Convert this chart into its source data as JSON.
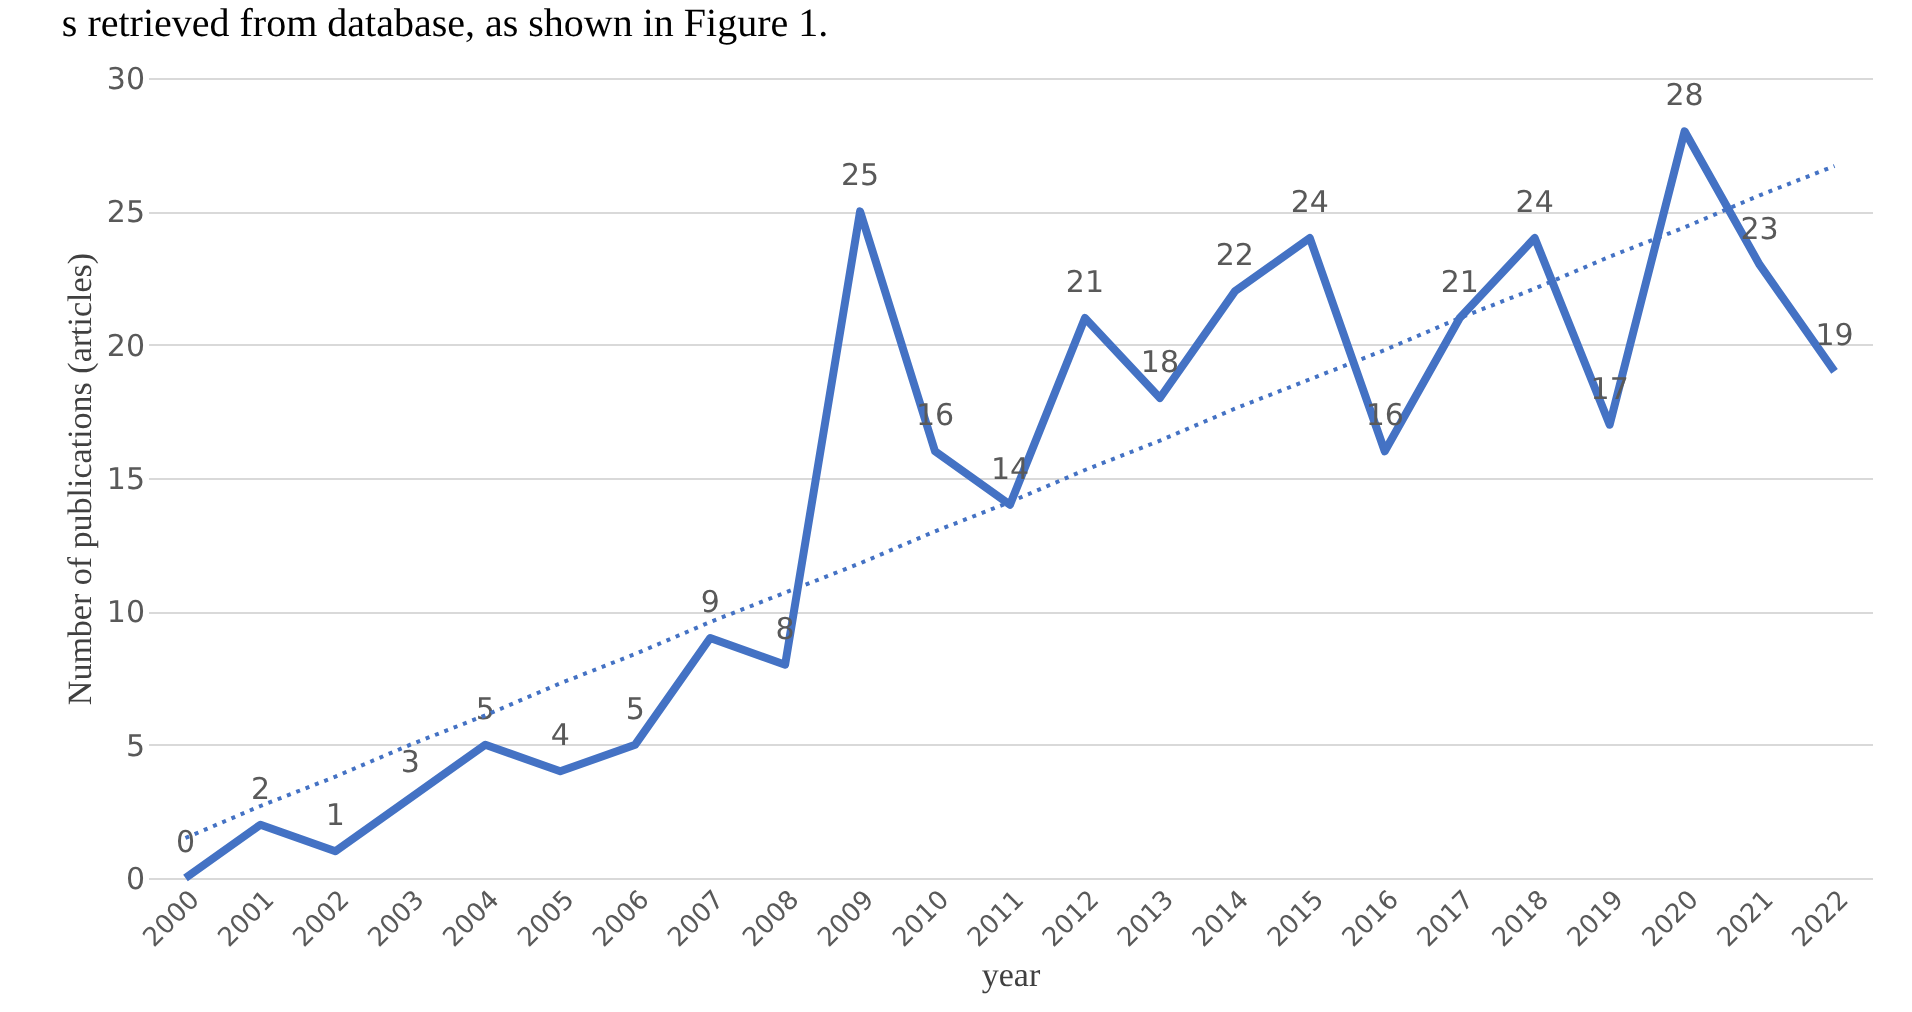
{
  "chart_data": {
    "type": "line",
    "xlabel": "year",
    "ylabel": "Number of publications (articles)",
    "annotations": [
      "s retrieved from database, as shown in Figure 1."
    ],
    "categories": [
      "2000",
      "2001",
      "2002",
      "2003",
      "2004",
      "2005",
      "2006",
      "2007",
      "2008",
      "2009",
      "2010",
      "2011",
      "2012",
      "2013",
      "2014",
      "2015",
      "2016",
      "2017",
      "2018",
      "2019",
      "2020",
      "2021",
      "2022"
    ],
    "series": [
      {
        "color": "#4472c4",
        "line_style": "solid",
        "values": [
          0,
          2,
          1,
          3,
          5,
          4,
          5,
          9,
          8,
          25,
          16,
          14,
          21,
          18,
          22,
          24,
          16,
          21,
          24,
          17,
          28,
          23,
          19
        ],
        "value_labels": [
          "0",
          "2",
          "1",
          "3",
          "5",
          "4",
          "5",
          "9",
          "8",
          "25",
          "16",
          "14",
          "21",
          "18",
          "22",
          "24",
          "16",
          "21",
          "24",
          "17",
          "28",
          "23",
          "19"
        ]
      },
      {
        "type": "line",
        "color": "#4472c4",
        "line_style": "dotted",
        "values": [
          1.5,
          2.7,
          3.8,
          5.0,
          6.1,
          7.3,
          8.4,
          9.6,
          10.7,
          11.8,
          13.0,
          14.1,
          15.3,
          16.4,
          17.6,
          18.7,
          19.8,
          21.0,
          22.1,
          23.3,
          24.4,
          25.6,
          26.7
        ]
      }
    ],
    "ylim": [
      0,
      30
    ],
    "yticks": [
      0,
      5,
      10,
      15,
      20,
      25,
      30
    ],
    "grid": "y",
    "marker": "none"
  }
}
